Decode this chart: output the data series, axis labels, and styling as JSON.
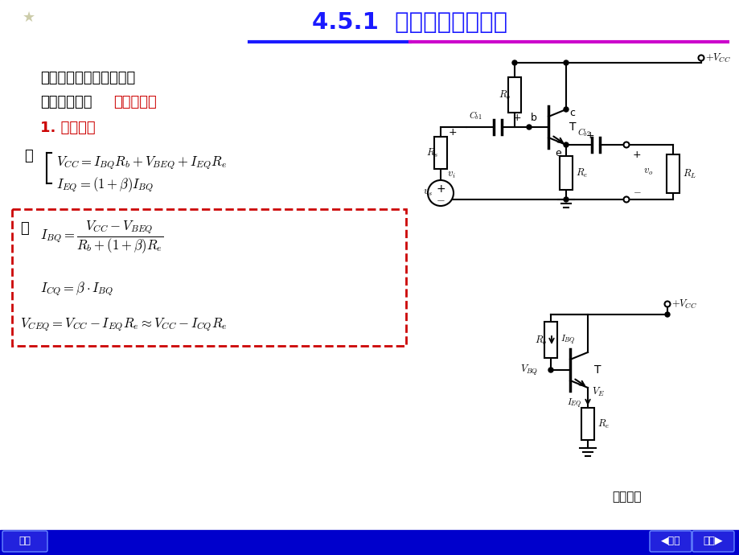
{
  "title": "4.5.1  共集电极放大电路",
  "title_color": "#1a1aff",
  "bg_color": "#f0f0f8",
  "text1": "共集电极电路结构如图示",
  "text2_plain": "该电路也称为",
  "text2_red": "射极输出器",
  "section_label": "1. 静态分析",
  "section_color": "#cc0000",
  "footer_left": "首页",
  "footer_right1": "上页",
  "footer_right2": "下页",
  "footer_bg": "#0000cc",
  "footer_text_color": "#ffffff",
  "line_color1": "#1a1aff",
  "line_color2": "#cc00cc",
  "dashed_box_color": "#cc0000",
  "dc_label": "直流通路"
}
